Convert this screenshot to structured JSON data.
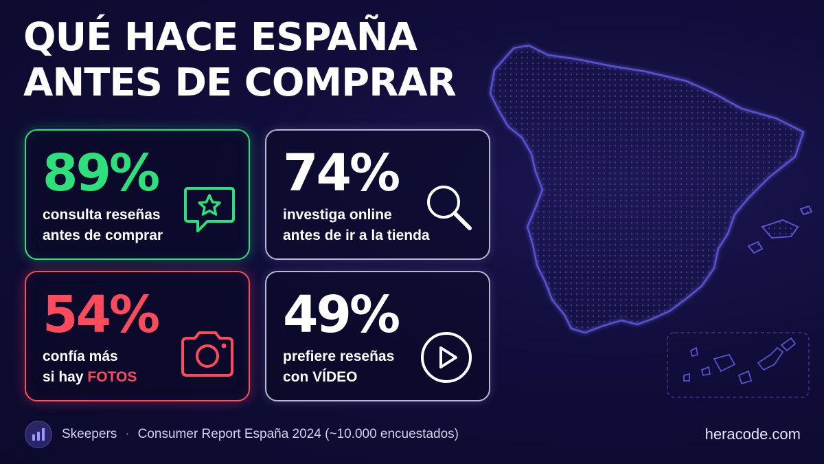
{
  "title": {
    "line1": "QUÉ HACE ESPAÑA",
    "line2": "ANTES DE COMPRAR"
  },
  "stats": [
    {
      "percent": "89%",
      "line1": "consulta reseñas",
      "line2": "antes de comprar",
      "icon": "star-chat-icon",
      "color": "#2ee07c"
    },
    {
      "percent": "74%",
      "line1": "investiga online",
      "line2": "antes de ir a la tienda",
      "icon": "magnifier-icon",
      "color": "#ffffff"
    },
    {
      "percent": "54%",
      "line1": "confía más",
      "line2_prefix": "si hay ",
      "line2_highlight": "FOTOS",
      "icon": "camera-icon",
      "color": "#ff4b5c"
    },
    {
      "percent": "49%",
      "line1": "prefiere reseñas",
      "line2": "con VÍDEO",
      "icon": "play-icon",
      "color": "#ffffff"
    }
  ],
  "footer": {
    "source": "Skeepers",
    "separator": "·",
    "report": "Consumer Report España 2024 (~10.000 encuestados)",
    "website": "heracode.com",
    "icon": "bar-chart-icon"
  }
}
